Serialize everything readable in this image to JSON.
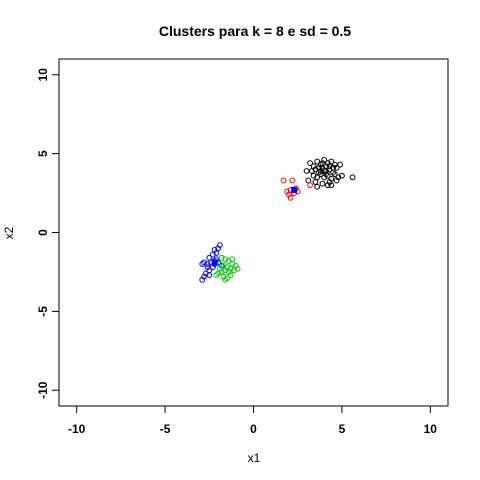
{
  "chart_data": {
    "type": "scatter",
    "title": "Clusters para k =  8  e sd =  0.5",
    "xlabel": "x1",
    "ylabel": "x2",
    "xlim": [
      -11,
      11
    ],
    "ylim": [
      -11,
      11
    ],
    "x_ticks": [
      -10,
      -5,
      0,
      5,
      10
    ],
    "y_ticks": [
      -10,
      -5,
      0,
      5,
      10
    ],
    "x_tick_labels": [
      "-10",
      "-5",
      "0",
      "5",
      "10"
    ],
    "y_tick_labels": [
      "-10",
      "-5",
      "0",
      "5",
      "10"
    ],
    "grid": false,
    "series": [
      {
        "color": "#000000",
        "points": [
          [
            3.2,
            4.4
          ],
          [
            3.4,
            4.2
          ],
          [
            3.6,
            4.5
          ],
          [
            3.8,
            4.3
          ],
          [
            4.0,
            4.6
          ],
          [
            4.2,
            4.4
          ],
          [
            4.4,
            4.5
          ],
          [
            4.6,
            4.3
          ],
          [
            3.3,
            3.9
          ],
          [
            3.5,
            4.0
          ],
          [
            3.7,
            3.8
          ],
          [
            3.9,
            4.1
          ],
          [
            4.1,
            3.9
          ],
          [
            4.3,
            4.0
          ],
          [
            4.5,
            3.8
          ],
          [
            4.7,
            4.1
          ],
          [
            3.4,
            3.6
          ],
          [
            3.6,
            3.5
          ],
          [
            3.8,
            3.7
          ],
          [
            4.0,
            3.5
          ],
          [
            4.2,
            3.6
          ],
          [
            4.4,
            3.4
          ],
          [
            4.6,
            3.7
          ],
          [
            4.8,
            3.5
          ],
          [
            3.1,
            3.3
          ],
          [
            3.5,
            3.2
          ],
          [
            3.9,
            3.1
          ],
          [
            4.3,
            3.2
          ],
          [
            4.7,
            3.3
          ],
          [
            4.1,
            4.2
          ],
          [
            3.9,
            4.4
          ],
          [
            4.3,
            4.2
          ],
          [
            3.7,
            4.1
          ],
          [
            4.5,
            4.1
          ],
          [
            3.0,
            3.9
          ],
          [
            4.9,
            4.3
          ],
          [
            5.0,
            3.6
          ],
          [
            3.6,
            2.9
          ],
          [
            4.2,
            3.0
          ],
          [
            4.0,
            3.9
          ],
          [
            3.8,
            3.9
          ],
          [
            4.1,
            3.7
          ],
          [
            5.6,
            3.5
          ],
          [
            4.4,
            3.0
          ]
        ]
      },
      {
        "color": "#ff0000",
        "points": [
          [
            1.7,
            3.3
          ],
          [
            2.2,
            3.3
          ],
          [
            1.9,
            2.6
          ],
          [
            2.1,
            2.7
          ],
          [
            2.0,
            2.4
          ],
          [
            2.3,
            2.5
          ],
          [
            2.1,
            2.2
          ],
          [
            2.5,
            2.6
          ],
          [
            3.2,
            3.0
          ],
          [
            2.4,
            2.8
          ]
        ]
      },
      {
        "color": "#0000ff",
        "points": [
          [
            -1.9,
            -0.8
          ],
          [
            -2.0,
            -1.0
          ],
          [
            -2.2,
            -1.1
          ],
          [
            -2.1,
            -1.3
          ],
          [
            -2.3,
            -1.4
          ],
          [
            -2.5,
            -1.6
          ],
          [
            -2.4,
            -1.9
          ],
          [
            -2.2,
            -1.8
          ],
          [
            -2.0,
            -1.9
          ],
          [
            -2.6,
            -2.0
          ],
          [
            -2.8,
            -1.9
          ],
          [
            -2.9,
            -2.0
          ],
          [
            -2.3,
            -2.2
          ],
          [
            -2.5,
            -2.4
          ],
          [
            -2.7,
            -2.6
          ],
          [
            -2.8,
            -2.8
          ],
          [
            -2.5,
            -2.7
          ],
          [
            -2.9,
            -3.0
          ],
          [
            -2.2,
            -2.0
          ],
          [
            -2.1,
            -1.7
          ],
          [
            -1.8,
            -2.1
          ],
          [
            -2.6,
            -2.2
          ]
        ]
      },
      {
        "color": "#00cc00",
        "points": [
          [
            -1.8,
            -1.6
          ],
          [
            -1.6,
            -1.7
          ],
          [
            -1.4,
            -1.8
          ],
          [
            -1.9,
            -2.0
          ],
          [
            -1.7,
            -2.1
          ],
          [
            -1.5,
            -2.2
          ],
          [
            -1.2,
            -2.0
          ],
          [
            -1.0,
            -2.1
          ],
          [
            -0.9,
            -2.3
          ],
          [
            -1.1,
            -2.4
          ],
          [
            -1.3,
            -2.3
          ],
          [
            -1.6,
            -2.4
          ],
          [
            -1.8,
            -2.5
          ],
          [
            -2.0,
            -2.6
          ],
          [
            -1.7,
            -2.8
          ],
          [
            -1.5,
            -2.9
          ],
          [
            -1.3,
            -2.7
          ],
          [
            -1.9,
            -2.3
          ],
          [
            -1.4,
            -2.5
          ],
          [
            -1.6,
            -3.0
          ],
          [
            -2.1,
            -2.7
          ],
          [
            -1.2,
            -1.7
          ]
        ]
      }
    ],
    "centroids": [
      {
        "color": "#0000ff",
        "x": 2.3,
        "y": 2.7
      },
      {
        "color": "#0000ff",
        "x": -2.2,
        "y": -1.9
      }
    ]
  }
}
